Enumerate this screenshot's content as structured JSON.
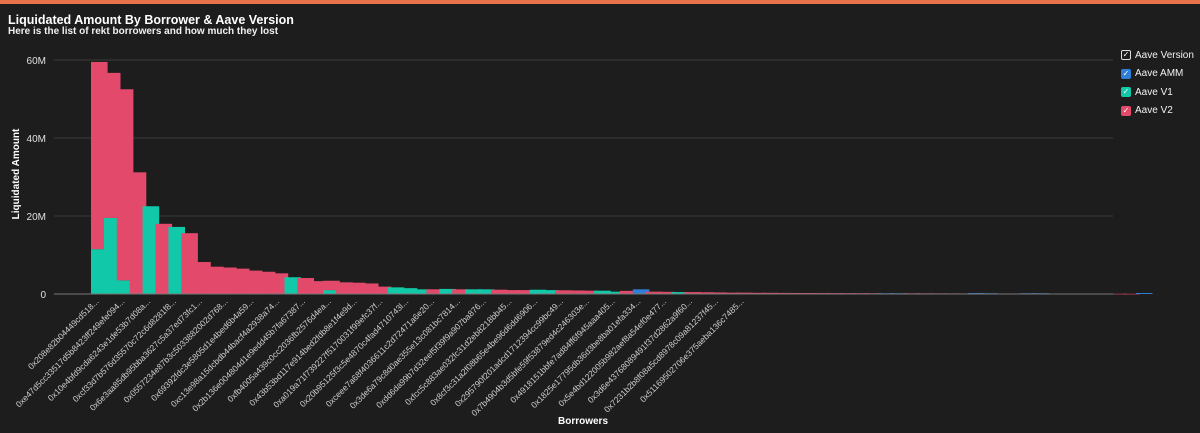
{
  "header": {
    "title": "Liquidated Amount By Borrower & Aave Version",
    "subtitle": "Here is the list of rekt borrowers and how much they lost"
  },
  "legend": {
    "title": "Aave Version",
    "items": [
      {
        "label": "Aave AMM",
        "color": "#2f7fd8"
      },
      {
        "label": "Aave V1",
        "color": "#11c9a8"
      },
      {
        "label": "Aave V2",
        "color": "#e2496a"
      }
    ]
  },
  "chart_data": {
    "type": "bar",
    "stacked": true,
    "xlabel": "Borrowers",
    "ylabel": "Liquidated Amount",
    "ylim": [
      0,
      60000000
    ],
    "yticks": [
      {
        "value": 0,
        "label": "0"
      },
      {
        "value": 20000000,
        "label": "20M"
      },
      {
        "value": 40000000,
        "label": "40M"
      },
      {
        "value": 60000000,
        "label": "60M"
      }
    ],
    "grid": true,
    "legend_position": "top-right",
    "x_tick_labels": [
      "0x208e82b04449cd518...",
      "0xe47d5cc33517d5b8423ff249efe094...",
      "0x10e4bfd9cda6243e1de53b7d08a...",
      "0xcf33d7b576d35570c72c6d8281f8...",
      "0x6e3aa85db95bba3627c5a37ed73fc1...",
      "0x0557234e87b3c5033882002d768...",
      "0x69392fdc3e5805d1e4bed6b4a59...",
      "0xc13e98a15dcbdb44bacf4a2938a74...",
      "0x2b136e004804d1e9edd45b7fa67387...",
      "0xfb4005a439c0cc2036fb2576d4ea...",
      "0x43b53bd117e914bed2fdb8e1f4e9d...",
      "0xa019a71f739227f5170031f99efc37f...",
      "0x20b95125f3c5e4870c4fad4710743l...",
      "0xceee7a68f4036611c2d72471a6e20...",
      "0x3de6a79c8d0ae355e13c081bc7814...",
      "0xdd6da99b7d32eef5f39f9a907ba876...",
      "0xfcc5c883ae032fc31d2eb8218bb45...",
      "0x8cf3c31a2f08b65e4be96d6dd6906...",
      "0x295790f201adcd1712394cc99bc49...",
      "0x7b4904b3d5bfe59f53879ed4c246303e...",
      "0x4918151bbfe7ad84ff6f945aaa405...",
      "0x1825e17795db36d3be8ba01efa334...",
      "0x5e4bd122005b982aef8a54ef0e477...",
      "0x3d6e43768089491f37d2862a9f60...",
      "0x7231b2b8f08a5cd8978c09a81237f45...",
      "0x51169502706e375aeba136c7485..."
    ],
    "series": [
      {
        "name": "Aave AMM",
        "color": "#2f7fd8",
        "values": [
          0,
          0,
          0,
          0,
          0,
          0,
          0,
          0,
          0,
          0,
          0,
          0,
          0,
          0,
          0,
          0,
          0,
          0,
          0,
          0,
          0,
          0,
          0,
          0,
          0,
          0,
          0,
          0,
          0,
          0,
          0,
          0,
          0,
          0,
          0,
          0,
          0,
          0,
          0,
          0,
          0,
          0,
          1200000,
          0,
          0,
          0,
          0,
          0,
          0,
          0,
          0,
          0,
          0,
          0,
          0,
          0,
          0,
          0,
          0,
          0,
          0,
          200000,
          200000,
          0,
          0,
          0,
          0,
          0,
          250000,
          200000,
          0,
          0,
          200000,
          200000,
          0,
          0,
          0,
          0,
          0,
          0,
          0,
          250000
        ]
      },
      {
        "name": "Aave V1",
        "color": "#11c9a8",
        "values": [
          11500000,
          19500000,
          3500000,
          0,
          22500000,
          0,
          17200000,
          0,
          0,
          0,
          0,
          0,
          0,
          0,
          0,
          4300000,
          0,
          0,
          1000000,
          0,
          0,
          0,
          0,
          1700000,
          1500000,
          1200000,
          0,
          1300000,
          0,
          1200000,
          1200000,
          0,
          0,
          0,
          1100000,
          1000000,
          0,
          0,
          0,
          850000,
          600000,
          0,
          0,
          0,
          0,
          500000,
          0,
          0,
          0,
          0,
          0,
          0,
          0,
          0,
          0,
          0,
          0,
          0,
          0,
          0,
          0,
          0,
          0,
          0,
          0,
          0,
          0,
          0,
          0,
          0,
          0,
          0,
          0,
          0,
          0,
          0,
          0,
          0,
          0,
          0,
          0,
          0
        ]
      },
      {
        "name": "Aave V2",
        "color": "#e2496a",
        "values": [
          48000000,
          37200000,
          49000000,
          31200000,
          0,
          18000000,
          0,
          15600000,
          8200000,
          7000000,
          6800000,
          6500000,
          6000000,
          5700000,
          5300000,
          0,
          4100000,
          3300000,
          2400000,
          3000000,
          2900000,
          2700000,
          1900000,
          0,
          0,
          0,
          1200000,
          0,
          1200000,
          0,
          0,
          1100000,
          1000000,
          1000000,
          0,
          0,
          950000,
          900000,
          850000,
          0,
          0,
          800000,
          0,
          600000,
          550000,
          0,
          500000,
          450000,
          400000,
          350000,
          350000,
          300000,
          300000,
          280000,
          260000,
          250000,
          240000,
          230000,
          220000,
          210000,
          200000,
          0,
          0,
          180000,
          170000,
          160000,
          150000,
          140000,
          0,
          0,
          130000,
          120000,
          0,
          0,
          110000,
          100000,
          90000,
          80000,
          70000,
          60000,
          50000,
          0
        ]
      }
    ]
  }
}
